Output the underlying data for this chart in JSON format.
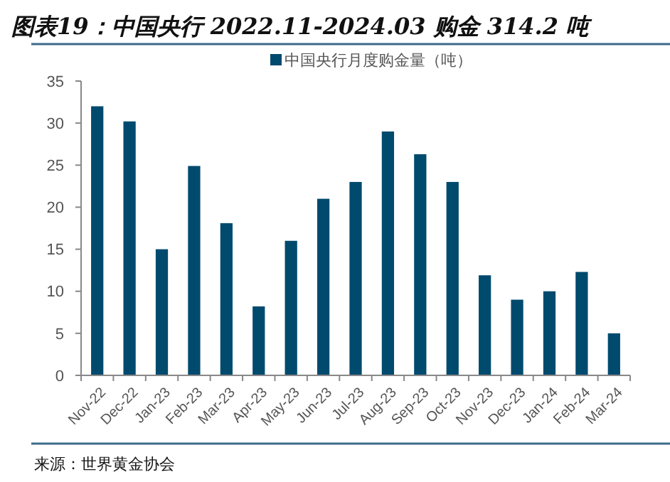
{
  "chart_data": {
    "type": "bar",
    "title": "图表19：中国央行 2022.11-2024.03 购金 314.2 吨",
    "categories": [
      "Nov-22",
      "Dec-22",
      "Jan-23",
      "Feb-23",
      "Mar-23",
      "Apr-23",
      "May-23",
      "Jun-23",
      "Jul-23",
      "Aug-23",
      "Sep-23",
      "Oct-23",
      "Nov-23",
      "Dec-23",
      "Jan-24",
      "Feb-24",
      "Mar-24"
    ],
    "series": [
      {
        "name": "中国央行月度购金量（吨）",
        "color": "#004a6e",
        "values": [
          32,
          30.2,
          15,
          24.9,
          18.1,
          8.2,
          16,
          21,
          23,
          29,
          26.3,
          23,
          11.9,
          9,
          10,
          12.3,
          5
        ]
      }
    ],
    "ylim": [
      0,
      35
    ],
    "yticks": [
      0,
      5,
      10,
      15,
      20,
      25,
      30,
      35
    ],
    "grid": false,
    "legend": "top",
    "annotations": [
      "来源：世界黄金协会"
    ]
  }
}
